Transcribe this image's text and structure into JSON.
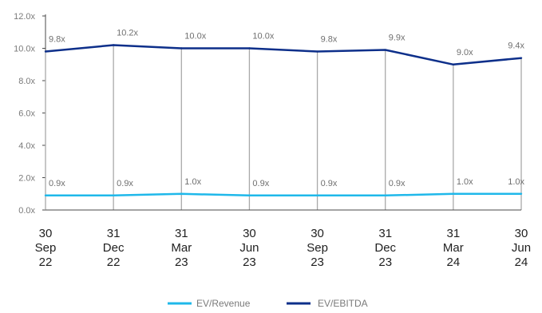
{
  "chart_data": {
    "type": "line",
    "categories": [
      [
        "30",
        "Sep",
        "22"
      ],
      [
        "31",
        "Dec",
        "22"
      ],
      [
        "31",
        "Mar",
        "23"
      ],
      [
        "30",
        "Jun",
        "23"
      ],
      [
        "30",
        "Sep",
        "23"
      ],
      [
        "31",
        "Dec",
        "23"
      ],
      [
        "31",
        "Mar",
        "24"
      ],
      [
        "30",
        "Jun",
        "24"
      ]
    ],
    "series": [
      {
        "name": "EV/Revenue",
        "color": "#1fb8ea",
        "values": [
          0.9,
          0.9,
          1.0,
          0.9,
          0.9,
          0.9,
          1.0,
          1.0
        ],
        "labels": [
          "0.9x",
          "0.9x",
          "1.0x",
          "0.9x",
          "0.9x",
          "0.9x",
          "1.0x",
          "1.0x"
        ]
      },
      {
        "name": "EV/EBITDA",
        "color": "#0d2f8a",
        "values": [
          9.8,
          10.2,
          10.0,
          10.0,
          9.8,
          9.9,
          9.0,
          9.4
        ],
        "labels": [
          "9.8x",
          "10.2x",
          "10.0x",
          "10.0x",
          "9.8x",
          "9.9x",
          "9.0x",
          "9.4x"
        ]
      }
    ],
    "ylim": [
      0,
      12
    ],
    "yticks": [
      0,
      2,
      4,
      6,
      8,
      10,
      12
    ],
    "ytick_labels": [
      "0.0x",
      "2.0x",
      "4.0x",
      "6.0x",
      "8.0x",
      "10.0x",
      "12.0x"
    ],
    "grid": false,
    "drop_lines": true,
    "legend_position": "bottom-center",
    "xlabel": "",
    "ylabel": "",
    "title": ""
  }
}
